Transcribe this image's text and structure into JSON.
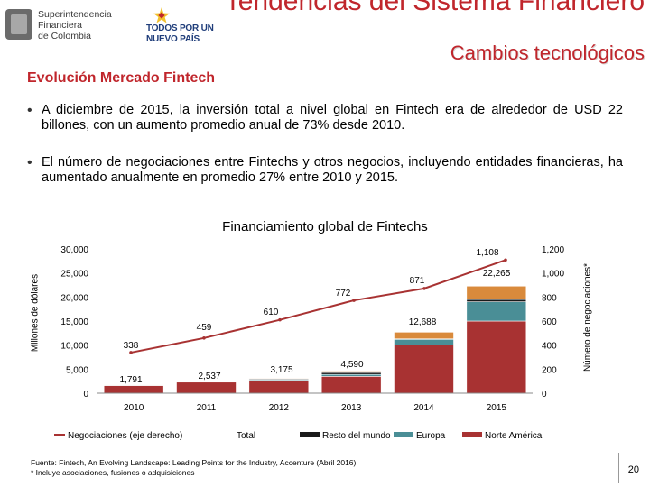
{
  "header": {
    "logo1_lines": [
      "Superintendencia",
      "Financiera",
      "de Colombia"
    ],
    "logo2_line1": "TODOS POR UN",
    "logo2_line2": "NUEVO PAÍS",
    "title": "Tendencias del Sistema Financiero",
    "subtitle": "Cambios tecnológicos"
  },
  "section_title": "Evolución Mercado Fintech",
  "bullets": [
    "A diciembre de 2015, la inversión total a nivel global en Fintech era de alrededor de USD 22 billones, con un aumento promedio anual de 73% desde 2010.",
    "El número de negociaciones entre Fintechs y otros negocios, incluyendo entidades financieras, ha aumentado anualmente en promedio 27% entre 2010 y 2015."
  ],
  "bullet_symbol": "•",
  "chart_data": {
    "type": "bar",
    "title": "Financiamiento global de Fintechs",
    "ylabel": "Millones de dólares",
    "y2label": "Número de negociaciones*",
    "ylim": [
      0,
      30000
    ],
    "y2lim": [
      0,
      1200
    ],
    "yticks": [
      "0",
      "5,000",
      "10,000",
      "15,000",
      "20,000",
      "25,000",
      "30,000"
    ],
    "y2ticks": [
      "0",
      "200",
      "400",
      "600",
      "800",
      "1,000",
      "1,200"
    ],
    "categories": [
      "2010",
      "2011",
      "2012",
      "2013",
      "2014",
      "2015"
    ],
    "series": [
      {
        "name": "Norte América",
        "color": "#a83232",
        "values": [
          1600,
          2300,
          2700,
          3500,
          10000,
          15000
        ]
      },
      {
        "name": "Europa",
        "color": "#4a8e96",
        "values": [
          80,
          100,
          200,
          400,
          1200,
          4000
        ]
      },
      {
        "name": "Resto del mundo",
        "color": "#1a1a1a",
        "values": [
          50,
          70,
          150,
          400,
          100,
          500
        ]
      },
      {
        "name": "Total",
        "color": "#d98a3c",
        "values": [
          61,
          67,
          125,
          290,
          1388,
          2765
        ]
      }
    ],
    "totals": [
      "1,791",
      "2,537",
      "3,175",
      "4,590",
      "12,688",
      "22,265"
    ],
    "line_series": {
      "name": "Negociaciones (eje derecho)",
      "color": "#a83232",
      "values": [
        338,
        459,
        610,
        772,
        871,
        1108
      ]
    },
    "line_labels": [
      "338",
      "459",
      "610",
      "772",
      "871",
      "1,108"
    ],
    "legend": [
      {
        "name": "Negociaciones (eje derecho)",
        "kind": "line",
        "color": "#a83232"
      },
      {
        "name": "Total",
        "kind": "none",
        "color": "#ffffff"
      },
      {
        "name": "Resto del mundo",
        "kind": "rect",
        "color": "#1a1a1a"
      },
      {
        "name": "Europa",
        "kind": "rect",
        "color": "#4a8e96"
      },
      {
        "name": "Norte América",
        "kind": "rect",
        "color": "#a83232"
      }
    ]
  },
  "footer": {
    "source": "Fuente: Fintech, An Evolving Landscape: Leading Points for the Industry, Accenture (Abril 2016)",
    "note": "* Incluye asociaciones, fusiones o adquisiciones"
  },
  "page_number": "20",
  "colors": {
    "accent": "#c0262c"
  }
}
